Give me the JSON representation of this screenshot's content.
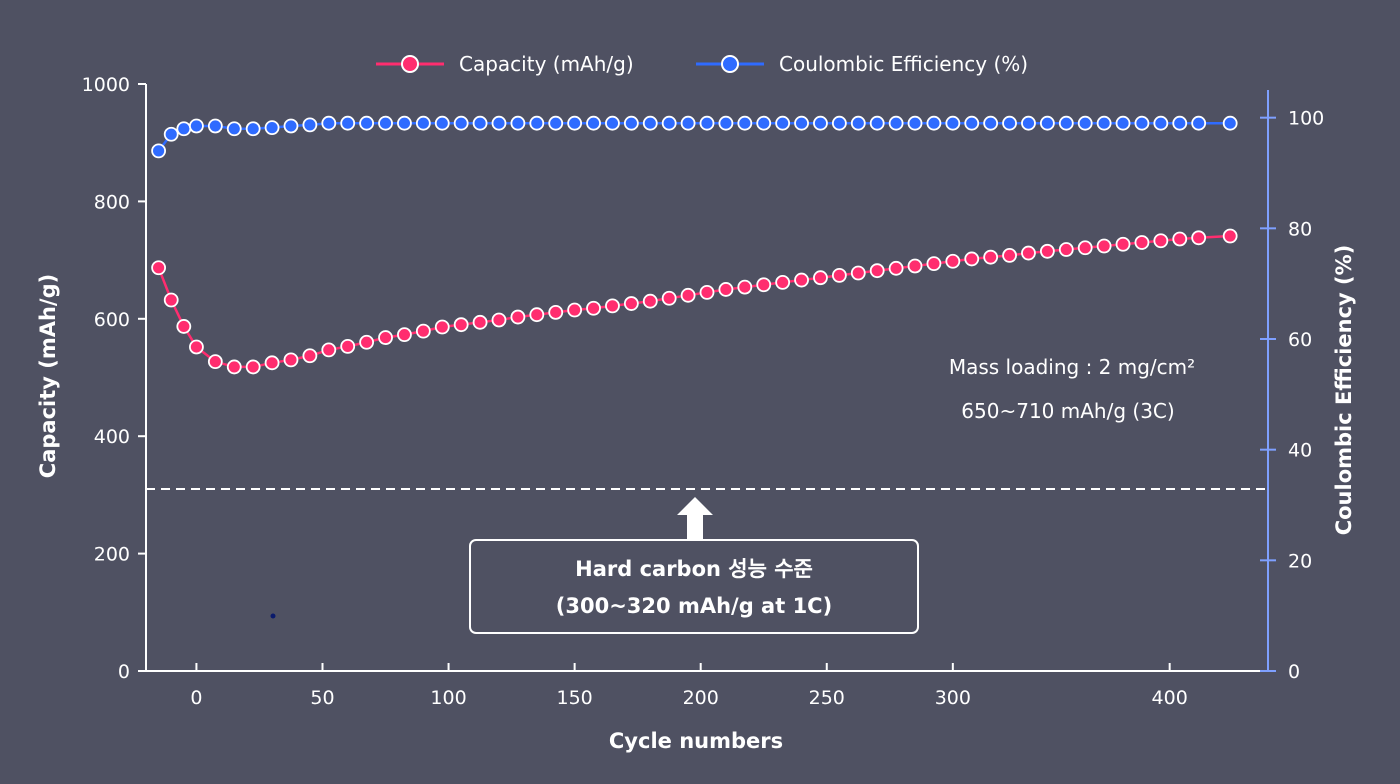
{
  "chart_data": {
    "type": "line",
    "xlabel": "Cycle numbers",
    "ylabel": "Capacity (mAh/g)",
    "y2label": "Coulombic Efficiency (%)",
    "xlim": [
      -20,
      425
    ],
    "ylim": [
      0,
      1000
    ],
    "y2lim": [
      0,
      105
    ],
    "x_ticks": [
      0,
      50,
      100,
      150,
      200,
      250,
      300,
      400
    ],
    "y_ticks": [
      0,
      200,
      400,
      600,
      800,
      1000
    ],
    "y2_ticks": [
      0,
      20,
      40,
      60,
      80,
      100
    ],
    "grid": false,
    "legend_position": "top-center",
    "series": [
      {
        "name": "Capacity (mAh/g)",
        "axis": "left",
        "color": "#ff2d6f",
        "x": [
          -15,
          -10,
          -5,
          0,
          7.5,
          15,
          22.5,
          30,
          37.5,
          45,
          52.5,
          60,
          67.5,
          75,
          82.5,
          90,
          97.5,
          105,
          112.5,
          120,
          127.5,
          135,
          142.5,
          150,
          157.5,
          165,
          172.5,
          180,
          187.5,
          195,
          202.5,
          210,
          217.5,
          225,
          232.5,
          240,
          247.5,
          255,
          262.5,
          270,
          277.5,
          285,
          292.5,
          300,
          307.5,
          315,
          322.5,
          330,
          337.5,
          345,
          352.5,
          360,
          367.5,
          375,
          382.5,
          390,
          397.5,
          410
        ],
        "y": [
          687,
          632,
          587,
          552,
          527,
          518,
          518,
          525,
          530,
          537,
          547,
          553,
          560,
          568,
          573,
          579,
          586,
          590,
          594,
          598,
          603,
          607,
          611,
          615,
          618,
          622,
          626,
          630,
          635,
          640,
          645,
          650,
          654,
          658,
          662,
          666,
          670,
          674,
          678,
          682,
          686,
          690,
          694,
          698,
          702,
          705,
          708,
          712,
          715,
          718,
          721,
          724,
          727,
          730,
          733,
          736,
          738,
          741
        ]
      },
      {
        "name": "Coulombic Efficiency (%)",
        "axis": "right",
        "color": "#2f6bff",
        "x": [
          -15,
          -10,
          -5,
          0,
          7.5,
          15,
          22.5,
          30,
          37.5,
          45,
          52.5,
          60,
          67.5,
          75,
          82.5,
          90,
          97.5,
          105,
          112.5,
          120,
          127.5,
          135,
          142.5,
          150,
          157.5,
          165,
          172.5,
          180,
          187.5,
          195,
          202.5,
          210,
          217.5,
          225,
          232.5,
          240,
          247.5,
          255,
          262.5,
          270,
          277.5,
          285,
          292.5,
          300,
          307.5,
          315,
          322.5,
          330,
          337.5,
          345,
          352.5,
          360,
          367.5,
          375,
          382.5,
          390,
          397.5,
          410
        ],
        "y": [
          94,
          97,
          98,
          98.5,
          98.5,
          98,
          98,
          98.2,
          98.5,
          98.7,
          99,
          99,
          99,
          99,
          99,
          99,
          99,
          99,
          99,
          99,
          99,
          99,
          99,
          99,
          99,
          99,
          99,
          99,
          99,
          99,
          99,
          99,
          99,
          99,
          99,
          99,
          99,
          99,
          99,
          99,
          99,
          99,
          99,
          99,
          99,
          99,
          99,
          99,
          99,
          99,
          99,
          99,
          99,
          99,
          99,
          99,
          99,
          99
        ]
      }
    ],
    "reference_line": {
      "y": 310,
      "style": "dashed"
    },
    "annotations": {
      "mass_loading": "Mass loading : 2 mg/cm²",
      "capacity_range": "650~710 mAh/g (3C)",
      "box_line1": "Hard carbon 성능 수준",
      "box_line2": "(300~320 mAh/g at 1C)"
    }
  },
  "colors": {
    "background": "#4f5162",
    "axis_left": "#ffffff",
    "axis_right": "#7fa0ff",
    "capacity": "#ff2d6f",
    "efficiency": "#2f6bff"
  }
}
